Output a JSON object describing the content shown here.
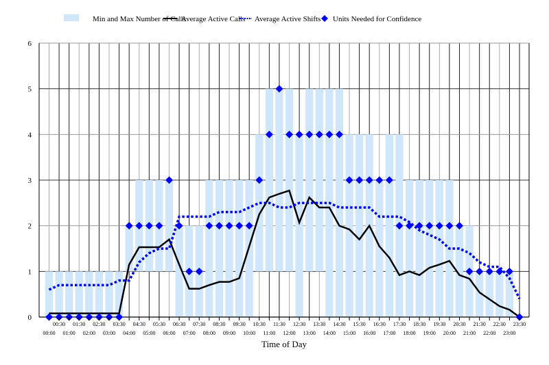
{
  "chart_data": {
    "type": "bar+line+scatter",
    "xlabel": "Time of Day",
    "ylabel": "",
    "ylim": [
      0,
      6
    ],
    "yticks": [
      "0",
      "1",
      "2",
      "3",
      "4",
      "5",
      "6"
    ],
    "grid": true,
    "legend_position": "top",
    "categories": [
      "00:00",
      "00:30",
      "01:00",
      "01:30",
      "02:00",
      "02:30",
      "03:00",
      "03:30",
      "04:00",
      "04:30",
      "05:00",
      "05:30",
      "06:00",
      "06:30",
      "07:00",
      "07:30",
      "08:00",
      "08:30",
      "09:00",
      "09:30",
      "10:00",
      "10:30",
      "11:00",
      "11:30",
      "12:00",
      "12:30",
      "13:00",
      "13:30",
      "14:00",
      "14:30",
      "15:00",
      "15:30",
      "16:00",
      "16:30",
      "17:00",
      "17:30",
      "18:00",
      "18:30",
      "19:00",
      "19:30",
      "20:00",
      "20:30",
      "21:00",
      "21:30",
      "22:00",
      "22:30",
      "23:00",
      "23:30"
    ],
    "series": [
      {
        "name": "Min and Max Number of Calls",
        "kind": "range-bar",
        "color": "#d0e6fb",
        "min": [
          0,
          0,
          0,
          0,
          0,
          0,
          0,
          0,
          1,
          1,
          1,
          1,
          1,
          0,
          0,
          0,
          0,
          0,
          0,
          0,
          0,
          1,
          1,
          1,
          1,
          0,
          1,
          1,
          0,
          0,
          0,
          0,
          0,
          0,
          0,
          0,
          0,
          0,
          0,
          0,
          0,
          0,
          0,
          0,
          0,
          0,
          0,
          null
        ],
        "max": [
          1,
          1,
          1,
          1,
          1,
          1,
          1,
          1,
          2,
          3,
          3,
          3,
          3,
          2,
          2,
          2,
          3,
          3,
          3,
          3,
          3,
          4,
          5,
          5,
          5,
          4,
          5,
          5,
          5,
          5,
          4,
          4,
          4,
          3,
          4,
          4,
          3,
          3,
          3,
          3,
          3,
          2,
          2,
          1,
          1,
          1,
          1,
          null
        ]
      },
      {
        "name": "Average Active Calls",
        "kind": "line",
        "color": "#000000",
        "values": [
          0.08,
          0.08,
          0.08,
          0.08,
          0.08,
          0.08,
          0.08,
          0.08,
          1.15,
          1.53,
          1.53,
          1.53,
          1.7,
          1.15,
          0.62,
          0.62,
          0.7,
          0.77,
          0.77,
          0.85,
          1.55,
          2.25,
          2.62,
          2.7,
          2.77,
          2.07,
          2.62,
          2.4,
          2.4,
          2.0,
          1.92,
          1.7,
          2.0,
          1.55,
          1.3,
          0.92,
          1.0,
          0.92,
          1.08,
          1.15,
          1.23,
          0.92,
          0.84,
          0.54,
          0.39,
          0.24,
          0.16,
          0
        ]
      },
      {
        "name": "Average Active Shifts",
        "kind": "dotted-line",
        "color": "#0000ff",
        "values": [
          0.6,
          0.7,
          0.7,
          0.7,
          0.7,
          0.7,
          0.7,
          0.8,
          0.8,
          1.2,
          1.4,
          1.5,
          1.5,
          2.2,
          2.2,
          2.2,
          2.2,
          2.3,
          2.3,
          2.3,
          2.4,
          2.5,
          2.5,
          2.4,
          2.4,
          2.5,
          2.5,
          2.5,
          2.5,
          2.4,
          2.4,
          2.4,
          2.4,
          2.2,
          2.2,
          2.2,
          2.08,
          1.9,
          1.8,
          1.7,
          1.5,
          1.5,
          1.4,
          1.2,
          1.1,
          1.1,
          0.85,
          0.4
        ]
      },
      {
        "name": "Units Needed for Confidence",
        "kind": "scatter-diamond",
        "color": "#0000ff",
        "values": [
          0,
          0,
          0,
          0,
          0,
          0,
          0,
          0,
          2,
          2,
          2,
          2,
          3,
          2,
          1,
          1,
          2,
          2,
          2,
          2,
          2,
          3,
          4,
          5,
          4,
          4,
          4,
          4,
          4,
          4,
          3,
          3,
          3,
          3,
          3,
          2,
          2,
          2,
          2,
          2,
          2,
          2,
          1,
          1,
          1,
          1,
          1,
          0
        ]
      }
    ]
  }
}
